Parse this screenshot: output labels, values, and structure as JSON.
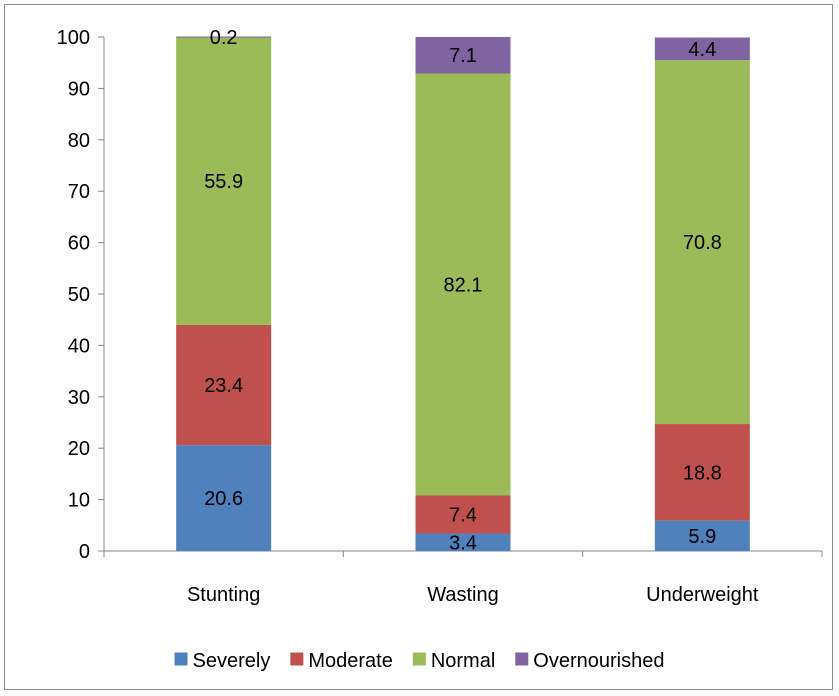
{
  "chart_data": {
    "type": "bar",
    "stacked": true,
    "categories": [
      "Stunting",
      "Wasting",
      "Underweight"
    ],
    "series": [
      {
        "name": "Severely",
        "values": [
          20.6,
          3.4,
          5.9
        ],
        "color": "#4f81bd"
      },
      {
        "name": "Moderate",
        "values": [
          23.4,
          7.4,
          18.8
        ],
        "color": "#c0504d"
      },
      {
        "name": "Normal",
        "values": [
          55.9,
          82.1,
          70.8
        ],
        "color": "#9bbb59"
      },
      {
        "name": "Overnourished",
        "values": [
          0.2,
          7.1,
          4.4
        ],
        "color": "#8064a2"
      }
    ],
    "ylim": [
      0,
      100
    ],
    "yticks": [
      0,
      10,
      20,
      30,
      40,
      50,
      60,
      70,
      80,
      90,
      100
    ],
    "grid": false,
    "legend": "bottom"
  }
}
